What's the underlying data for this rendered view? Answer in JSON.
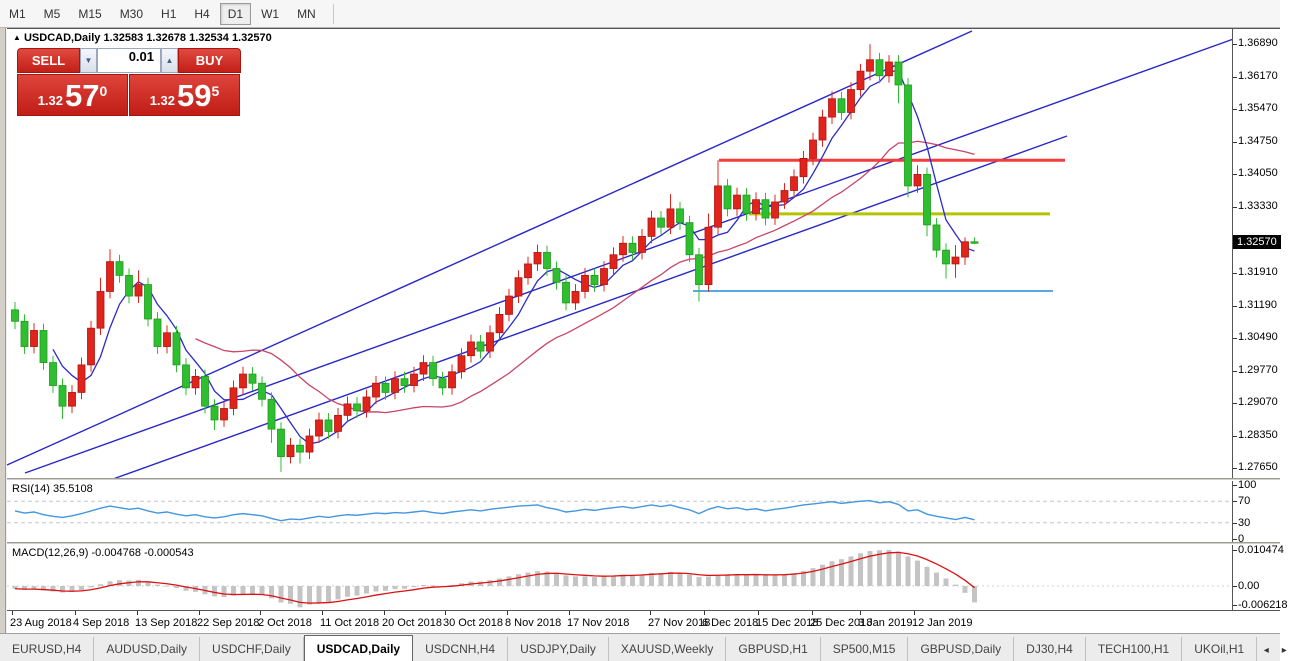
{
  "toolbar": {
    "timeframes": [
      "M1",
      "M5",
      "M15",
      "M30",
      "H1",
      "H4",
      "D1",
      "W1",
      "MN"
    ],
    "active": "D1"
  },
  "chart_header": {
    "collapse_arrow": "▲",
    "symbol": "USDCAD,Daily",
    "open": "1.32583",
    "high": "1.32678",
    "low": "1.32534",
    "close": "1.32570"
  },
  "trade_panel": {
    "sell_label": "SELL",
    "buy_label": "BUY",
    "volume": "0.01",
    "spin_down": "▼",
    "spin_up": "▲",
    "sell_price_base": "1.32",
    "sell_price_big": "57",
    "sell_price_sup": "0",
    "buy_price_base": "1.32",
    "buy_price_big": "59",
    "buy_price_sup": "5"
  },
  "price_axis": {
    "labels": [
      "1.36890",
      "1.36170",
      "1.35470",
      "1.34750",
      "1.34050",
      "1.33330",
      "1.31910",
      "1.31190",
      "1.30490",
      "1.29770",
      "1.29070",
      "1.28350",
      "1.27650"
    ],
    "badge": "1.32570",
    "badge_price": 1.3257
  },
  "rsi_pane": {
    "label": "RSI(14) 35.5108",
    "axis": [
      {
        "t": "100",
        "v": 100
      },
      {
        "t": "70",
        "v": 70
      },
      {
        "t": "30",
        "v": 30
      },
      {
        "t": "0",
        "v": 0
      }
    ],
    "levels": [
      70,
      30
    ]
  },
  "macd_pane": {
    "label": "MACD(12,26,9) -0.004768 -0.000543",
    "axis": [
      {
        "t": "0.010474",
        "v": 0.010474
      },
      {
        "t": "0.00",
        "v": 0.0
      },
      {
        "t": "-0.006218",
        "v": -0.006218
      }
    ]
  },
  "date_axis": {
    "ticks": [
      {
        "x": 5,
        "label": "23 Aug 2018"
      },
      {
        "x": 68,
        "label": "4 Sep 2018"
      },
      {
        "x": 130,
        "label": "13 Sep 2018"
      },
      {
        "x": 192,
        "label": "22 Sep 2018"
      },
      {
        "x": 253,
        "label": "2 Oct 2018"
      },
      {
        "x": 315,
        "label": "11 Oct 2018"
      },
      {
        "x": 377,
        "label": "20 Oct 2018"
      },
      {
        "x": 438,
        "label": "30 Oct 2018"
      },
      {
        "x": 500,
        "label": "8 Nov 2018"
      },
      {
        "x": 562,
        "label": "17 Nov 2018"
      },
      {
        "x": 643,
        "label": "27 Nov 2018"
      },
      {
        "x": 697,
        "label": "6 Dec 2018"
      },
      {
        "x": 751,
        "label": "15 Dec 2018"
      },
      {
        "x": 805,
        "label": "25 Dec 2018"
      },
      {
        "x": 853,
        "label": "3 Jan 2019"
      },
      {
        "x": 907,
        "label": "12 Jan 2019"
      }
    ]
  },
  "tabs": {
    "items": [
      "EURUSD,H4",
      "AUDUSD,Daily",
      "USDCHF,Daily",
      "USDCAD,Daily",
      "USDCNH,H4",
      "USDJPY,Daily",
      "XAUUSD,Weekly",
      "GBPUSD,H1",
      "SP500,M15",
      "GBPUSD,Daily",
      "DJ30,H4",
      "TECH100,H1",
      "UKOil,H1"
    ],
    "active": "USDCAD,Daily",
    "scroll_left": "◂",
    "scroll_right": "▸"
  },
  "chart_data": {
    "type": "candlestick",
    "symbol": "USDCAD",
    "timeframe": "Daily",
    "ylim": [
      1.2765,
      1.3689
    ],
    "layout": {
      "x0": 8,
      "dx": 9.5,
      "price_a": 6297,
      "price_b": 4589,
      "rsi_y0": 58,
      "rsi_scale": 0.54,
      "macd_zero": 41,
      "macd_scale": 3437
    },
    "colors": {
      "up": "#e0241c",
      "up_edge": "#b01510",
      "down": "#2fbe2f",
      "down_edge": "#1d9c1d",
      "ma_fast": "#2b2bc8",
      "ma_slow": "#c84468",
      "trend": "#2828c8",
      "hline_red": "#f23b3b",
      "hline_olive": "#b5c400",
      "hline_lightblue": "#58a8e8",
      "rsi_line": "#4496e0",
      "macd_hist": "#c4c4c4",
      "macd_signal": "#dd1111"
    },
    "trendlines": [
      {
        "x1": 0,
        "y1": 436,
        "x2": 965,
        "y2": 2
      },
      {
        "x1": 18,
        "y1": 444,
        "x2": 1232,
        "y2": 8
      },
      {
        "x1": 106,
        "y1": 450,
        "x2": 1060,
        "y2": 107
      }
    ],
    "hlines": [
      {
        "price": 1.3436,
        "x1": 712,
        "x2": 1058,
        "color_key": "hline_red",
        "w": 3
      },
      {
        "price": 1.3319,
        "x1": 742,
        "x2": 1043,
        "color_key": "hline_olive",
        "w": 3
      },
      {
        "price": 1.3151,
        "x1": 686,
        "x2": 1046,
        "color_key": "hline_lightblue",
        "w": 2
      }
    ],
    "ma_fast_period": 5,
    "ma_slow_period": 20,
    "macd_signal_period": 5,
    "candles": [
      [
        1.311,
        1.3127,
        1.3068,
        1.3085
      ],
      [
        1.3085,
        1.31,
        1.3014,
        1.303
      ],
      [
        1.303,
        1.3081,
        1.3015,
        1.3065
      ],
      [
        1.3065,
        1.308,
        1.2979,
        1.2995
      ],
      [
        1.2995,
        1.301,
        1.2929,
        1.2945
      ],
      [
        1.2945,
        1.296,
        1.2872,
        1.29
      ],
      [
        1.29,
        1.2946,
        1.2885,
        1.293
      ],
      [
        1.293,
        1.3006,
        1.2915,
        1.299
      ],
      [
        1.299,
        1.3086,
        1.2975,
        1.307
      ],
      [
        1.307,
        1.318,
        1.3055,
        1.315
      ],
      [
        1.315,
        1.3242,
        1.3135,
        1.3215
      ],
      [
        1.3215,
        1.323,
        1.3169,
        1.3185
      ],
      [
        1.3185,
        1.32,
        1.3124,
        1.314
      ],
      [
        1.314,
        1.3196,
        1.3125,
        1.3165
      ],
      [
        1.3165,
        1.318,
        1.3074,
        1.309
      ],
      [
        1.309,
        1.3105,
        1.3014,
        1.303
      ],
      [
        1.303,
        1.3076,
        1.3015,
        1.306
      ],
      [
        1.306,
        1.3075,
        1.2974,
        1.299
      ],
      [
        1.299,
        1.3005,
        1.2924,
        1.294
      ],
      [
        1.294,
        1.2981,
        1.2925,
        1.2965
      ],
      [
        1.2965,
        1.298,
        1.2884,
        1.29
      ],
      [
        1.29,
        1.2915,
        1.2848,
        1.287
      ],
      [
        1.287,
        1.2911,
        1.2855,
        1.2895
      ],
      [
        1.2895,
        1.2956,
        1.288,
        1.294
      ],
      [
        1.294,
        1.2986,
        1.2925,
        1.297
      ],
      [
        1.297,
        1.2985,
        1.2934,
        1.295
      ],
      [
        1.295,
        1.2965,
        1.2899,
        1.2915
      ],
      [
        1.2915,
        1.293,
        1.282,
        1.285
      ],
      [
        1.285,
        1.2865,
        1.2757,
        1.279
      ],
      [
        1.279,
        1.2831,
        1.2775,
        1.2815
      ],
      [
        1.2815,
        1.283,
        1.2775,
        1.28
      ],
      [
        1.28,
        1.2851,
        1.2785,
        1.2835
      ],
      [
        1.2835,
        1.2886,
        1.282,
        1.287
      ],
      [
        1.287,
        1.2885,
        1.2829,
        1.2845
      ],
      [
        1.2845,
        1.2896,
        1.283,
        1.288
      ],
      [
        1.288,
        1.2921,
        1.2865,
        1.2905
      ],
      [
        1.2905,
        1.292,
        1.2874,
        1.289
      ],
      [
        1.289,
        1.2936,
        1.2875,
        1.292
      ],
      [
        1.292,
        1.2966,
        1.2905,
        1.295
      ],
      [
        1.295,
        1.2965,
        1.2914,
        1.293
      ],
      [
        1.293,
        1.2976,
        1.2915,
        1.296
      ],
      [
        1.296,
        1.2975,
        1.2929,
        1.2945
      ],
      [
        1.2945,
        1.2986,
        1.293,
        1.297
      ],
      [
        1.297,
        1.3011,
        1.2955,
        1.2995
      ],
      [
        1.2995,
        1.301,
        1.2944,
        1.296
      ],
      [
        1.296,
        1.2975,
        1.2924,
        1.294
      ],
      [
        1.294,
        1.2991,
        1.2925,
        1.2975
      ],
      [
        1.2975,
        1.3026,
        1.296,
        1.301
      ],
      [
        1.301,
        1.3056,
        1.2995,
        1.304
      ],
      [
        1.304,
        1.3055,
        1.3004,
        1.302
      ],
      [
        1.302,
        1.3076,
        1.3005,
        1.306
      ],
      [
        1.306,
        1.3116,
        1.3045,
        1.31
      ],
      [
        1.31,
        1.3156,
        1.3085,
        1.314
      ],
      [
        1.314,
        1.3196,
        1.3125,
        1.318
      ],
      [
        1.318,
        1.3226,
        1.3165,
        1.321
      ],
      [
        1.321,
        1.3252,
        1.3195,
        1.3235
      ],
      [
        1.3235,
        1.325,
        1.3184,
        1.32
      ],
      [
        1.32,
        1.3215,
        1.3154,
        1.317
      ],
      [
        1.317,
        1.3185,
        1.3109,
        1.3125
      ],
      [
        1.3125,
        1.3166,
        1.311,
        1.315
      ],
      [
        1.315,
        1.3201,
        1.3135,
        1.3185
      ],
      [
        1.3185,
        1.32,
        1.3149,
        1.3165
      ],
      [
        1.3165,
        1.3216,
        1.315,
        1.32
      ],
      [
        1.32,
        1.3246,
        1.3185,
        1.323
      ],
      [
        1.323,
        1.3271,
        1.3215,
        1.3255
      ],
      [
        1.3255,
        1.327,
        1.3219,
        1.3235
      ],
      [
        1.3235,
        1.3286,
        1.322,
        1.327
      ],
      [
        1.327,
        1.3326,
        1.3255,
        1.331
      ],
      [
        1.331,
        1.3325,
        1.3274,
        1.329
      ],
      [
        1.329,
        1.3362,
        1.3275,
        1.333
      ],
      [
        1.333,
        1.3345,
        1.3284,
        1.33
      ],
      [
        1.33,
        1.3315,
        1.3214,
        1.323
      ],
      [
        1.323,
        1.3245,
        1.3128,
        1.3165
      ],
      [
        1.3165,
        1.332,
        1.315,
        1.329
      ],
      [
        1.329,
        1.3436,
        1.3275,
        1.338
      ],
      [
        1.338,
        1.3395,
        1.3314,
        1.333
      ],
      [
        1.333,
        1.3376,
        1.3315,
        1.336
      ],
      [
        1.336,
        1.3375,
        1.3304,
        1.332
      ],
      [
        1.332,
        1.3366,
        1.3305,
        1.335
      ],
      [
        1.335,
        1.3365,
        1.3294,
        1.331
      ],
      [
        1.331,
        1.3361,
        1.3295,
        1.3345
      ],
      [
        1.3345,
        1.3386,
        1.333,
        1.337
      ],
      [
        1.337,
        1.3416,
        1.3355,
        1.34
      ],
      [
        1.34,
        1.3456,
        1.3385,
        1.344
      ],
      [
        1.344,
        1.3496,
        1.3425,
        1.348
      ],
      [
        1.348,
        1.3546,
        1.3465,
        1.353
      ],
      [
        1.353,
        1.3586,
        1.3515,
        1.357
      ],
      [
        1.357,
        1.3585,
        1.3524,
        1.354
      ],
      [
        1.354,
        1.3606,
        1.3525,
        1.359
      ],
      [
        1.359,
        1.3646,
        1.3575,
        1.363
      ],
      [
        1.363,
        1.3689,
        1.361,
        1.3655
      ],
      [
        1.3655,
        1.367,
        1.3604,
        1.362
      ],
      [
        1.362,
        1.3665,
        1.3605,
        1.365
      ],
      [
        1.365,
        1.3665,
        1.356,
        1.36
      ],
      [
        1.36,
        1.3615,
        1.3355,
        1.338
      ],
      [
        1.338,
        1.3425,
        1.3365,
        1.3405
      ],
      [
        1.3405,
        1.342,
        1.327,
        1.3295
      ],
      [
        1.3295,
        1.331,
        1.3224,
        1.324
      ],
      [
        1.324,
        1.3255,
        1.3178,
        1.321
      ],
      [
        1.321,
        1.3251,
        1.318,
        1.3225
      ],
      [
        1.3225,
        1.3268,
        1.3208,
        1.32583
      ],
      [
        1.32583,
        1.32678,
        1.32534,
        1.3257
      ]
    ],
    "rsi": [
      52,
      48,
      50,
      45,
      42,
      40,
      43,
      47,
      52,
      57,
      61,
      58,
      55,
      57,
      52,
      48,
      50,
      46,
      43,
      45,
      41,
      39,
      41,
      45,
      47,
      45,
      43,
      38,
      34,
      37,
      36,
      39,
      42,
      40,
      43,
      45,
      44,
      46,
      48,
      47,
      49,
      48,
      50,
      52,
      49,
      47,
      50,
      52,
      54,
      52,
      55,
      57,
      59,
      61,
      62,
      63,
      58,
      55,
      50,
      52,
      55,
      53,
      56,
      58,
      60,
      57,
      60,
      63,
      60,
      63,
      58,
      54,
      47,
      55,
      60,
      56,
      58,
      54,
      56,
      52,
      55,
      57,
      60,
      63,
      65,
      67,
      69,
      66,
      68,
      70,
      71,
      67,
      69,
      64,
      52,
      54,
      46,
      42,
      39,
      36,
      40,
      35.5
    ],
    "macd": [
      -0.0008,
      -0.0011,
      -0.0009,
      -0.0013,
      -0.0016,
      -0.0019,
      -0.0017,
      -0.0012,
      -0.0004,
      0.0005,
      0.0014,
      0.0017,
      0.0016,
      0.0018,
      0.0012,
      0.0004,
      0.0001,
      -0.0006,
      -0.0014,
      -0.0017,
      -0.0024,
      -0.003,
      -0.0032,
      -0.0028,
      -0.0024,
      -0.0023,
      -0.0026,
      -0.0036,
      -0.0048,
      -0.0052,
      -0.0062,
      -0.0054,
      -0.0048,
      -0.0046,
      -0.0039,
      -0.0031,
      -0.0028,
      -0.0022,
      -0.0016,
      -0.0014,
      -0.0009,
      -0.0008,
      -0.0003,
      0.0003,
      0.0002,
      0.0,
      0.0003,
      0.0008,
      0.0013,
      0.0013,
      0.0017,
      0.0022,
      0.0028,
      0.0034,
      0.0039,
      0.0043,
      0.0042,
      0.0038,
      0.0031,
      0.0028,
      0.0028,
      0.0026,
      0.0027,
      0.003,
      0.0033,
      0.0032,
      0.0034,
      0.0038,
      0.0038,
      0.0041,
      0.0038,
      0.0033,
      0.0026,
      0.0027,
      0.0032,
      0.0033,
      0.0035,
      0.0033,
      0.0034,
      0.0031,
      0.0032,
      0.0034,
      0.0038,
      0.0044,
      0.0052,
      0.0062,
      0.0072,
      0.0078,
      0.0086,
      0.0095,
      0.0102,
      0.0104,
      0.010474,
      0.01,
      0.0086,
      0.0074,
      0.0056,
      0.0039,
      0.0022,
      0.0004,
      -0.002,
      -0.004768
    ]
  }
}
